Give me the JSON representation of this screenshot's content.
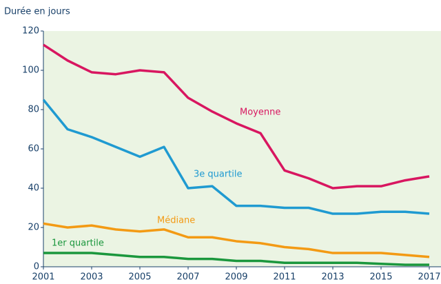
{
  "chart_data": {
    "type": "line",
    "y_label": "Durée en jours",
    "x": [
      2001,
      2002,
      2003,
      2004,
      2005,
      2006,
      2007,
      2008,
      2009,
      2010,
      2011,
      2012,
      2013,
      2014,
      2015,
      2016,
      2017
    ],
    "series": [
      {
        "name": "Moyenne",
        "color": "#d81660",
        "values": [
          113,
          105,
          99,
          98,
          100,
          99,
          86,
          79,
          73,
          68,
          49,
          45,
          40,
          41,
          41,
          44,
          46
        ]
      },
      {
        "name": "3e quartile",
        "color": "#1f9ad1",
        "values": [
          85,
          70,
          66,
          61,
          56,
          61,
          40,
          41,
          31,
          31,
          30,
          30,
          27,
          27,
          28,
          28,
          27
        ]
      },
      {
        "name": "Médiane",
        "color": "#f39a14",
        "values": [
          22,
          20,
          21,
          19,
          18,
          19,
          15,
          15,
          13,
          12,
          10,
          9,
          7,
          7,
          7,
          6,
          5
        ]
      },
      {
        "name": "1er quartile",
        "color": "#1b973d",
        "values": [
          7,
          7,
          7,
          6,
          5,
          5,
          4,
          4,
          3,
          3,
          2,
          2,
          2,
          2,
          1.5,
          1,
          1
        ]
      }
    ],
    "xlim": [
      2001,
      2017
    ],
    "xticks": [
      2001,
      2003,
      2005,
      2007,
      2009,
      2011,
      2013,
      2015,
      2017
    ],
    "ylim": [
      0,
      120
    ],
    "yticks": [
      0,
      20,
      40,
      60,
      80,
      100,
      120
    ]
  }
}
